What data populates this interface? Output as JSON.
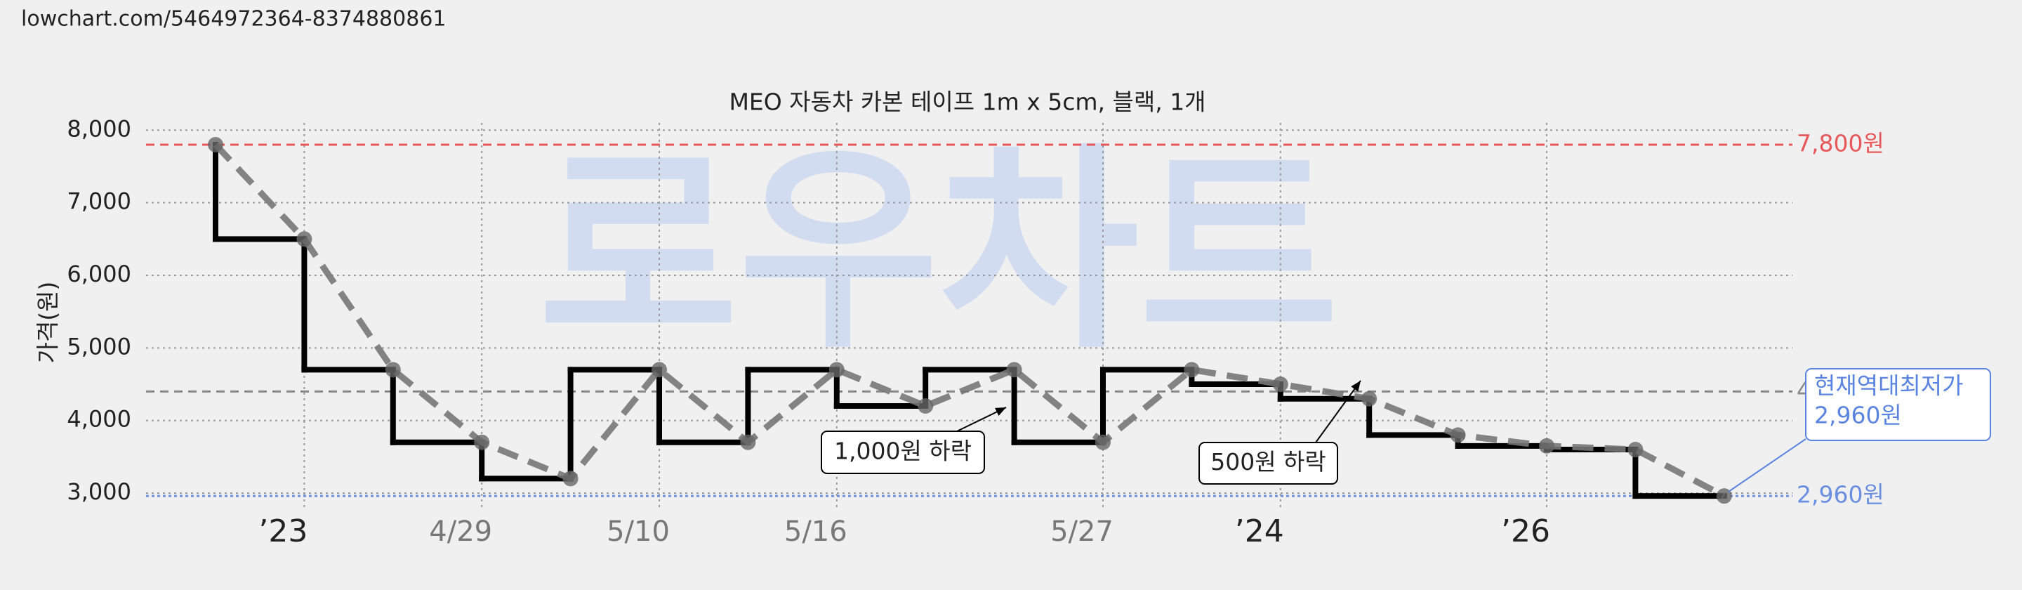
{
  "url": "lowchart.com/5464972364-8374880861",
  "chart_data": {
    "type": "line",
    "title": "MEO 자동차 카본 테이프 1m x 5cm, 블랙, 1개",
    "watermark": "로우차트",
    "y_label": "가격(원)",
    "categories": [
      null,
      "’23",
      null,
      "4/29",
      null,
      "5/10",
      null,
      "5/16",
      null,
      null,
      "5/27",
      null,
      "’24",
      null,
      null,
      "’26",
      null,
      null
    ],
    "series": [
      {
        "color": "#777777",
        "step_color": "#000000",
        "values": [
          7800,
          6500,
          4700,
          3700,
          3200,
          4700,
          3700,
          4700,
          4200,
          4700,
          3700,
          4700,
          4500,
          4300,
          3800,
          3650,
          3600,
          2960
        ]
      }
    ],
    "ylim": [
      2800,
      8100
    ],
    "yticks": [
      {
        "value": 3000,
        "label": "3,000"
      },
      {
        "value": 4000,
        "label": "4,000"
      },
      {
        "value": 5000,
        "label": "5,000"
      },
      {
        "value": 6000,
        "label": "6,000"
      },
      {
        "value": 7000,
        "label": "7,000"
      },
      {
        "value": 8000,
        "label": "8,000"
      }
    ],
    "grid": true,
    "reference_lines": [
      {
        "value": 7800,
        "label": "7,800원",
        "color": "#e8585a"
      },
      {
        "value": 4400,
        "label": "4",
        "color": "#888888"
      },
      {
        "value": 2960,
        "label": "2,960원",
        "color": "#6a8fe0"
      }
    ],
    "annotations": [
      {
        "text": "1,000원 하락"
      },
      {
        "text": "500원 하락"
      }
    ],
    "callout": {
      "lines": [
        "현재역대최저가",
        "2,960원"
      ],
      "color": "#5b84e0"
    }
  }
}
